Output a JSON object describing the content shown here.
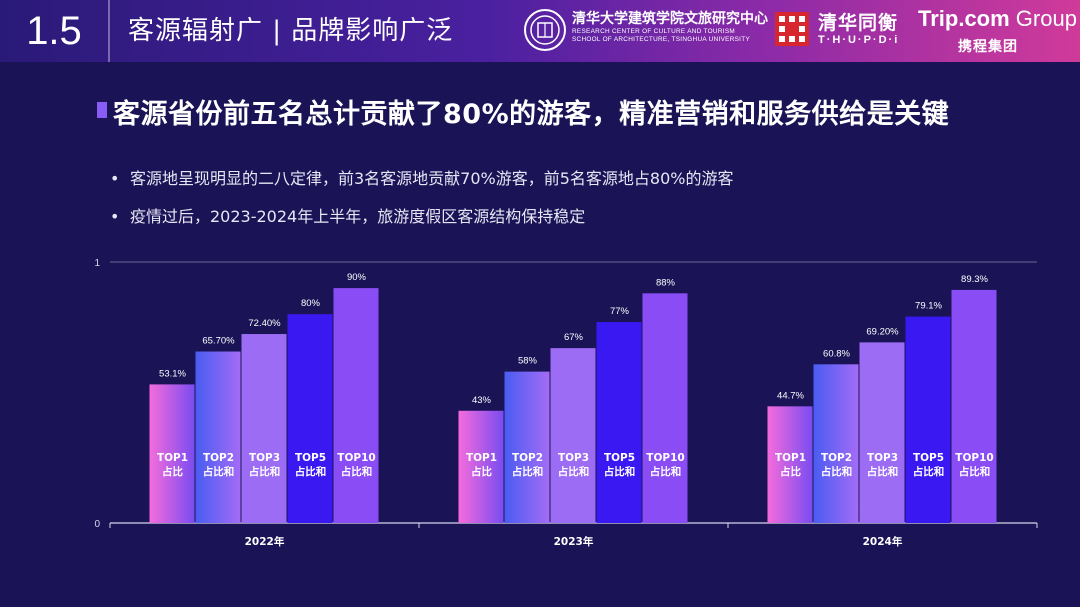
{
  "header": {
    "section_number": "1.5",
    "section_title": "客源辐射广 | 品牌影响广泛",
    "logos": {
      "thu_cn": "清华大学建筑学院文旅研究中心",
      "thu_en_1": "RESEARCH CENTER OF CULTURE AND TOURISM",
      "thu_en_2": "SCHOOL OF ARCHITECTURE, TSINGHUA UNIVERSITY",
      "pdi_cn": "清华同衡",
      "pdi_en": "T·H·U·P·D·i",
      "trip_main": "Trip.com",
      "trip_group": " Group",
      "trip_cn": "携程集团"
    }
  },
  "headline": "客源省份前五名总计贡献了80%的游客，精准营销和服务供给是关键",
  "bullets": [
    "客源地呈现明显的二八定律，前3名客源地贡献70%游客，前5名客源地占80%的游客",
    "疫情过后，2023-2024年上半年，旅游度假区客源结构保持稳定"
  ],
  "chart_data": {
    "type": "bar",
    "categories": [
      "2022年",
      "2023年",
      "2024年"
    ],
    "ylim": [
      0,
      1
    ],
    "y_ticks": [
      "0",
      "1"
    ],
    "grid": false,
    "series": [
      {
        "name": "TOP1 占比",
        "name_lines": [
          "TOP1",
          "占比"
        ],
        "values": [
          0.531,
          0.43,
          0.447
        ],
        "labels": [
          "53.1%",
          "43%",
          "44.7%"
        ]
      },
      {
        "name": "TOP2 占比和",
        "name_lines": [
          "TOP2",
          "占比和"
        ],
        "values": [
          0.657,
          0.58,
          0.608
        ],
        "labels": [
          "65.70%",
          "58%",
          "60.8%"
        ]
      },
      {
        "name": "TOP3 占比和",
        "name_lines": [
          "TOP3",
          "占比和"
        ],
        "values": [
          0.724,
          0.67,
          0.692
        ],
        "labels": [
          "72.40%",
          "67%",
          "69.20%"
        ]
      },
      {
        "name": "TOP5 占比和",
        "name_lines": [
          "TOP5",
          "占比和"
        ],
        "values": [
          0.8,
          0.77,
          0.791
        ],
        "labels": [
          "80%",
          "77%",
          "79.1%"
        ]
      },
      {
        "name": "TOP10 占比和",
        "name_lines": [
          "TOP10",
          "占比和"
        ],
        "values": [
          0.9,
          0.88,
          0.893
        ],
        "labels": [
          "90%",
          "88%",
          "89.3%"
        ]
      }
    ],
    "colors": {
      "top1": [
        "#f56cdc",
        "#7a4cf0"
      ],
      "top2": [
        "#4a5cf2",
        "#a46cf6"
      ],
      "top3": "#9d6cf4",
      "top5": "#3a18f2",
      "top10": "#8a4cf4",
      "axis": "#d8d6ea",
      "label": "#ffffff"
    }
  }
}
